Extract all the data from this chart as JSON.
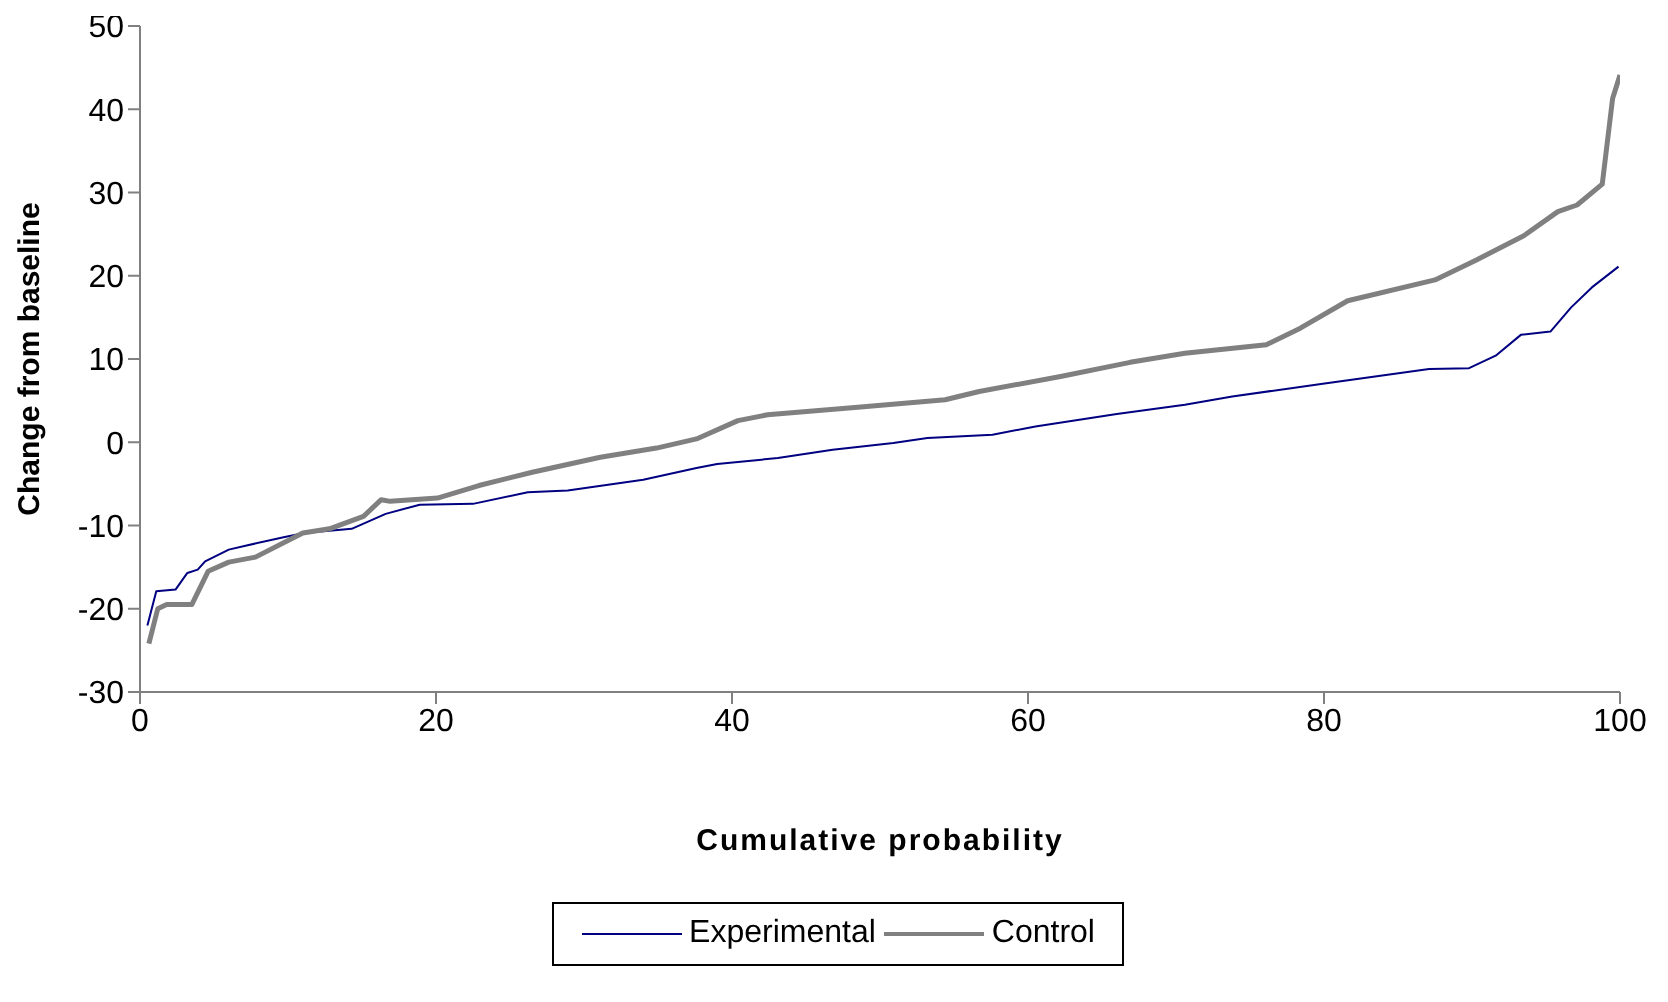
{
  "chart_data": {
    "type": "line",
    "xlabel": "Cumulative probability",
    "ylabel": "Change from baseline",
    "xlim": [
      0,
      100
    ],
    "xticks": [
      0,
      20,
      40,
      60,
      80,
      100
    ],
    "ylim": [
      -30,
      50
    ],
    "yticks": [
      -30,
      -20,
      -10,
      0,
      10,
      20,
      30,
      40,
      50
    ],
    "grid": false,
    "legend": "bottom",
    "marker": "none",
    "line_style": "solid",
    "series": [
      {
        "name": "Experimental",
        "color": "#000080",
        "x": [
          0.5,
          1.1,
          2.4,
          3.2,
          3.9,
          4.4,
          6,
          7.2,
          9.7,
          11.1,
          14.3,
          16.6,
          18.9,
          22.5,
          26.2,
          28.9,
          34,
          37.6,
          39,
          43.1,
          46.8,
          50.9,
          53.2,
          57.6,
          60.5,
          66,
          70.6,
          73.8,
          79.8,
          87.1,
          89.8,
          91.6,
          93.3,
          95.3,
          96.7,
          98.1,
          99.9
        ],
        "values": [
          -22,
          -17.9,
          -17.7,
          -15.7,
          -15.3,
          -14.3,
          -12.9,
          -12.4,
          -11.4,
          -10.9,
          -10.4,
          -8.6,
          -7.5,
          -7.4,
          -6,
          -5.8,
          -4.5,
          -3.1,
          -2.6,
          -1.9,
          -0.9,
          -0.1,
          0.5,
          0.9,
          1.9,
          3.4,
          4.5,
          5.5,
          7,
          8.8,
          8.9,
          10.4,
          12.9,
          13.3,
          16.2,
          18.6,
          21.1
        ]
      },
      {
        "name": "Control",
        "color": "#808080",
        "x": [
          0.6,
          1.2,
          1.8,
          3.5,
          4.6,
          6,
          7.8,
          11,
          12.8,
          15.1,
          16.3,
          16.9,
          20.1,
          22.9,
          26.5,
          31.1,
          34.9,
          37.6,
          40.4,
          42.4,
          48.5,
          54.4,
          56.7,
          62.2,
          66.9,
          70.6,
          76.1,
          78.4,
          81.6,
          87.5,
          90.3,
          93.5,
          95.8,
          97.1,
          98.8,
          99.5,
          100
        ],
        "values": [
          -24.2,
          -20,
          -19.5,
          -19.5,
          -15.5,
          -14.4,
          -13.8,
          -10.9,
          -10.4,
          -8.9,
          -6.9,
          -7.1,
          -6.7,
          -5.2,
          -3.6,
          -1.8,
          -0.7,
          0.4,
          2.6,
          3.3,
          4.2,
          5.1,
          6.1,
          7.9,
          9.6,
          10.7,
          11.7,
          13.7,
          17,
          19.5,
          21.9,
          24.8,
          27.7,
          28.5,
          31,
          41.3,
          44.1
        ]
      }
    ]
  }
}
